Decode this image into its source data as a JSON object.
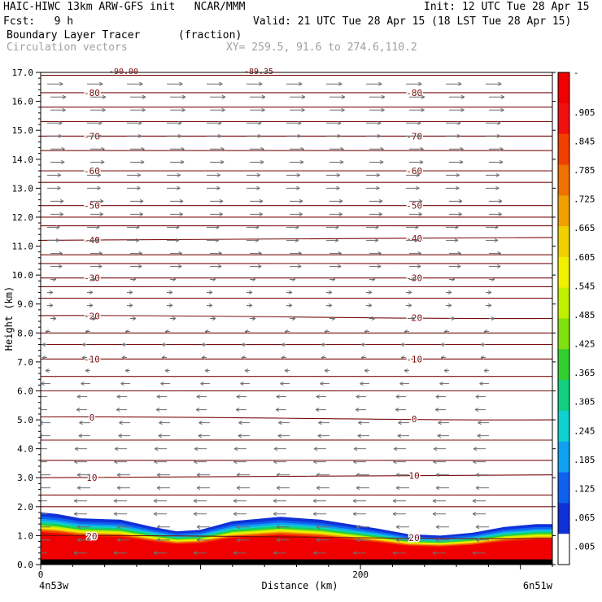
{
  "header": {
    "title": "HAIC-HIWC 13km ARW-GFS init   NCAR/MMM",
    "init": "Init: 12 UTC Tue 28 Apr 15",
    "fcst": "Fcst:   9 h",
    "valid": "Valid: 21 UTC Tue 28 Apr 15 (18 LST Tue 28 Apr 15)",
    "field": "Boundary Layer Tracer",
    "units": "(fraction)",
    "overlay": "Circulation vectors",
    "xy": "XY= 259.5, 91.6 to 274.6,110.2",
    "top_clipped_labels": [
      "-90.00",
      "-89.35"
    ]
  },
  "colors": {
    "contour": "#7a0e0e",
    "vector": "#6e6e6e",
    "tracer_ramp": [
      "#ffffff",
      "#1030d8",
      "#1060f0",
      "#10a0f0",
      "#10d0d0",
      "#10d080",
      "#30d030",
      "#80e010",
      "#c0f000",
      "#f0f000",
      "#f0d000",
      "#f0a000",
      "#f07000",
      "#f04000",
      "#f01010",
      "#f00000"
    ]
  },
  "chart_data": {
    "type": "heatmap",
    "title": "Boundary Layer Tracer (fraction)",
    "xlabel": "Distance (km)",
    "ylabel": "Height (km)",
    "xlim": [
      0,
      320
    ],
    "ylim": [
      0,
      17
    ],
    "x_ticks": [
      0,
      200
    ],
    "x_tick_labels": [
      "0",
      "200"
    ],
    "x_endpoint_labels": [
      "4n53w",
      "6n51w"
    ],
    "y_ticks": [
      0,
      1,
      2,
      3,
      4,
      5,
      6,
      7,
      8,
      9,
      10,
      11,
      12,
      13,
      14,
      15,
      16,
      17
    ],
    "y_tick_labels": [
      "0.0",
      "1.0",
      "2.0",
      "3.0",
      "4.0",
      "5.0",
      "6.0",
      "7.0",
      "8.0",
      "9.0",
      "10.0",
      "11.0",
      "12.0",
      "13.0",
      "14.0",
      "15.0",
      "16.0",
      "17.0"
    ],
    "colorbar": {
      "labels": [
        "-",
        ".905",
        ".845",
        ".785",
        ".725",
        ".665",
        ".605",
        ".545",
        ".485",
        ".425",
        ".365",
        ".305",
        ".245",
        ".185",
        ".125",
        ".065",
        ".005"
      ]
    },
    "tracer_profile": {
      "x": [
        0,
        10,
        25,
        50,
        70,
        85,
        100,
        120,
        150,
        175,
        210,
        230,
        250,
        270,
        290,
        310,
        320
      ],
      "top_height": [
        1.8,
        1.75,
        1.6,
        1.55,
        1.3,
        1.15,
        1.2,
        1.5,
        1.65,
        1.55,
        1.25,
        1.05,
        1.0,
        1.1,
        1.3,
        1.4,
        1.4
      ]
    },
    "contours": [
      {
        "label": "-80",
        "heights": [
          16.3,
          16.3
        ]
      },
      {
        "label": "-70",
        "heights": [
          14.8,
          14.8
        ]
      },
      {
        "label": "-60",
        "heights": [
          13.6,
          13.6
        ]
      },
      {
        "label": "-50",
        "heights": [
          12.4,
          12.4
        ]
      },
      {
        "label": "-40",
        "heights": [
          11.2,
          11.3
        ]
      },
      {
        "label": "-30",
        "heights": [
          9.9,
          9.9
        ]
      },
      {
        "label": "-20",
        "heights": [
          8.6,
          8.5
        ]
      },
      {
        "label": "-10",
        "heights": [
          7.1,
          7.1
        ]
      },
      {
        "label": "0",
        "heights": [
          5.1,
          5.0
        ]
      },
      {
        "label": "10",
        "heights": [
          3.0,
          3.1
        ]
      },
      {
        "label": "20",
        "heights": [
          1.0,
          0.9
        ]
      }
    ],
    "extra_isolines": [
      16.9,
      15.8,
      15.3,
      14.3,
      13.2,
      12.0,
      11.7,
      10.7,
      10.4,
      9.6,
      9.2,
      8.0,
      7.6,
      6.5,
      6.0,
      4.3,
      3.6,
      2.4,
      2.0
    ]
  }
}
